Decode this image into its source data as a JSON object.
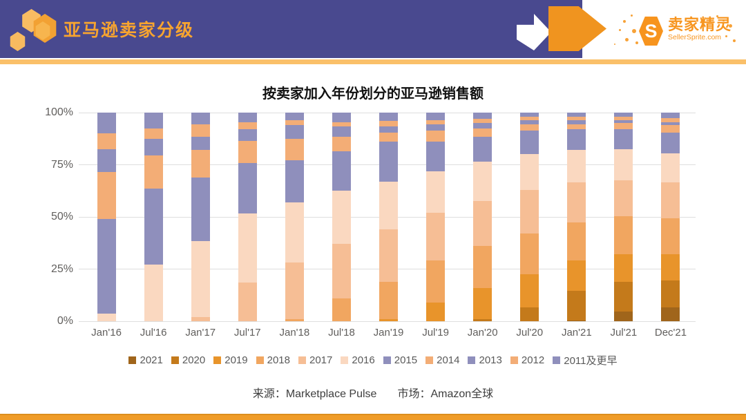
{
  "header": {
    "title": "亚马逊卖家分级",
    "logo": {
      "monogram": "S",
      "name_cn": "卖家精灵",
      "name_en": "SellerSprite.com"
    },
    "colors": {
      "header_bg": "#49498F",
      "title_orange": "#F7A42F",
      "arrow_orange": "#F0941F",
      "divider_top": "#FAC06A",
      "strip_bottom": "#F09C28"
    }
  },
  "chart_data": {
    "type": "bar",
    "variant": "stacked-100-percent",
    "title": "按卖家加入年份划分的亚马逊销售额",
    "xlabel": "",
    "ylabel": "",
    "ylim": [
      0,
      100
    ],
    "y_ticks": [
      "100%",
      "75%",
      "50%",
      "25%",
      "0%"
    ],
    "grid": "horizontal",
    "legend_position": "bottom",
    "categories": [
      "Jan'16",
      "Jul'16",
      "Jan'17",
      "Jul'17",
      "Jan'18",
      "Jul'18",
      "Jan'19",
      "Jul'19",
      "Jan'20",
      "Jul'20",
      "Jan'21",
      "Jul'21",
      "Dec'21"
    ],
    "series": [
      {
        "name": "2021",
        "color": "#A0651B",
        "values": [
          0,
          0,
          0,
          0,
          0,
          0,
          0,
          0,
          0,
          0,
          0.5,
          4.5,
          6.5
        ]
      },
      {
        "name": "2020",
        "color": "#C47A1B",
        "values": [
          0,
          0,
          0,
          0,
          0,
          0,
          0,
          0,
          1,
          6.5,
          14,
          14.5,
          13
        ]
      },
      {
        "name": "2019",
        "color": "#E8942B",
        "values": [
          0,
          0,
          0,
          0,
          0,
          0,
          1,
          9,
          15,
          16,
          14.5,
          13,
          12.5
        ]
      },
      {
        "name": "2018",
        "color": "#F1A660",
        "values": [
          0,
          0,
          0,
          0,
          1,
          11,
          18,
          20,
          20,
          19.5,
          18.5,
          18.5,
          17.5
        ]
      },
      {
        "name": "2017",
        "color": "#F6BE95",
        "values": [
          0,
          0,
          2,
          18.5,
          27,
          26,
          25,
          23,
          21.5,
          21,
          19,
          17,
          17
        ]
      },
      {
        "name": "2016",
        "color": "#FAD8C0",
        "values": [
          3.5,
          27,
          36.5,
          33,
          29,
          25.5,
          23,
          20,
          19,
          17,
          15.5,
          15,
          14
        ]
      },
      {
        "name": "2015",
        "color": "#8F8FBC",
        "values": [
          45.5,
          36.5,
          30.5,
          24.5,
          20,
          19,
          19,
          14,
          12,
          11.5,
          10,
          9.5,
          10
        ]
      },
      {
        "name": "2014",
        "color": "#F3AD76",
        "values": [
          22.5,
          16,
          13,
          10.5,
          10.5,
          7,
          4.5,
          5.5,
          4,
          3,
          2.5,
          3,
          3.5
        ]
      },
      {
        "name": "2013",
        "color": "#8F8FBC",
        "values": [
          11,
          8,
          6.5,
          5.5,
          6.5,
          5,
          3,
          3,
          2.5,
          2,
          2,
          1.5,
          1.5
        ]
      },
      {
        "name": "2012",
        "color": "#F3AD76",
        "values": [
          7.5,
          5,
          6,
          3.5,
          2.5,
          2,
          2.5,
          2,
          2,
          1.5,
          1.5,
          1.5,
          2
        ]
      },
      {
        "name": "2011及更早",
        "color": "#8F8FBC",
        "values": [
          10,
          7.5,
          5.5,
          4.5,
          3.5,
          4.5,
          4,
          3.5,
          3,
          2,
          2,
          2,
          2.5
        ]
      }
    ]
  },
  "footer": {
    "source": "来源：Marketplace Pulse",
    "market": "市场：Amazon全球"
  }
}
